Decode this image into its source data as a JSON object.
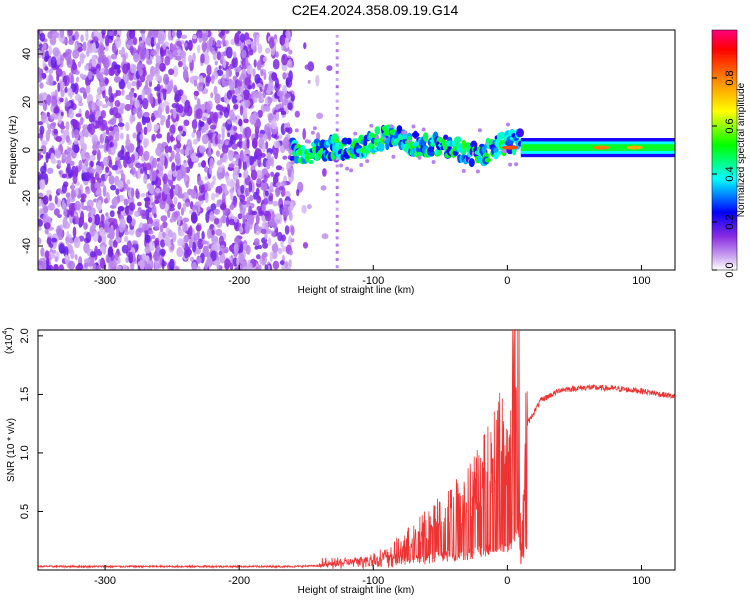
{
  "title": "C2E4.2024.358.09.19.G14",
  "chart_data": [
    {
      "type": "heatmap",
      "title": "C2E4.2024.358.09.19.G14",
      "xlabel": "Height of straight line (km)",
      "ylabel": "Frequency (Hz)",
      "xlim": [
        -350,
        125
      ],
      "ylim": [
        -50,
        50
      ],
      "x_ticks": [
        -300,
        -200,
        -100,
        0,
        100
      ],
      "y_ticks": [
        -40,
        -20,
        0,
        20,
        40
      ],
      "colorbar": {
        "label": "Normalized spectral amplitude",
        "range": [
          0,
          1
        ],
        "ticks": [
          "0.0",
          "0.2",
          "0.4",
          "0.6",
          "0.8"
        ],
        "colormap": [
          "#ffffff",
          "#8a2be2",
          "#0000ff",
          "#00ffff",
          "#00ff00",
          "#ffff00",
          "#ff8000",
          "#ff0000",
          "#ff0080"
        ]
      },
      "regions": [
        {
          "x_range": [
            -350,
            -160
          ],
          "freq_range": [
            -50,
            50
          ],
          "amplitude": 0.1,
          "pattern": "scattered noise"
        },
        {
          "x_range": [
            -160,
            10
          ],
          "freq_center": 2,
          "freq_width": 8,
          "amplitude": 0.5,
          "pattern": "blotchy carrier"
        },
        {
          "x_range": [
            10,
            125
          ],
          "freq_center": 1,
          "freq_width": 6,
          "amplitude": 0.55,
          "pattern": "steady carrier"
        }
      ]
    },
    {
      "type": "line",
      "xlabel": "Height of straight line (km)",
      "ylabel": "SNR (10 * v/v)",
      "y_scale_label": "(x10",
      "y_scale_exp": "4",
      "xlim": [
        -350,
        125
      ],
      "ylim": [
        0,
        2.05
      ],
      "x_ticks": [
        -300,
        -200,
        -100,
        0,
        100
      ],
      "y_ticks": [
        "0.5",
        "1.0",
        "1.5",
        "2.0"
      ],
      "series": [
        {
          "color": "#ee3333",
          "x": [
            -350,
            -300,
            -250,
            -200,
            -160,
            -130,
            -110,
            -90,
            -70,
            -50,
            -30,
            -15,
            -5,
            0,
            5,
            8,
            10,
            15,
            25,
            40,
            60,
            80,
            100,
            115,
            125
          ],
          "y": [
            0.03,
            0.03,
            0.03,
            0.03,
            0.03,
            0.04,
            0.07,
            0.12,
            0.25,
            0.4,
            0.55,
            0.8,
            1.0,
            0.8,
            1.5,
            2.05,
            0.2,
            1.25,
            1.45,
            1.54,
            1.56,
            1.55,
            1.53,
            1.5,
            1.48
          ]
        }
      ]
    }
  ]
}
